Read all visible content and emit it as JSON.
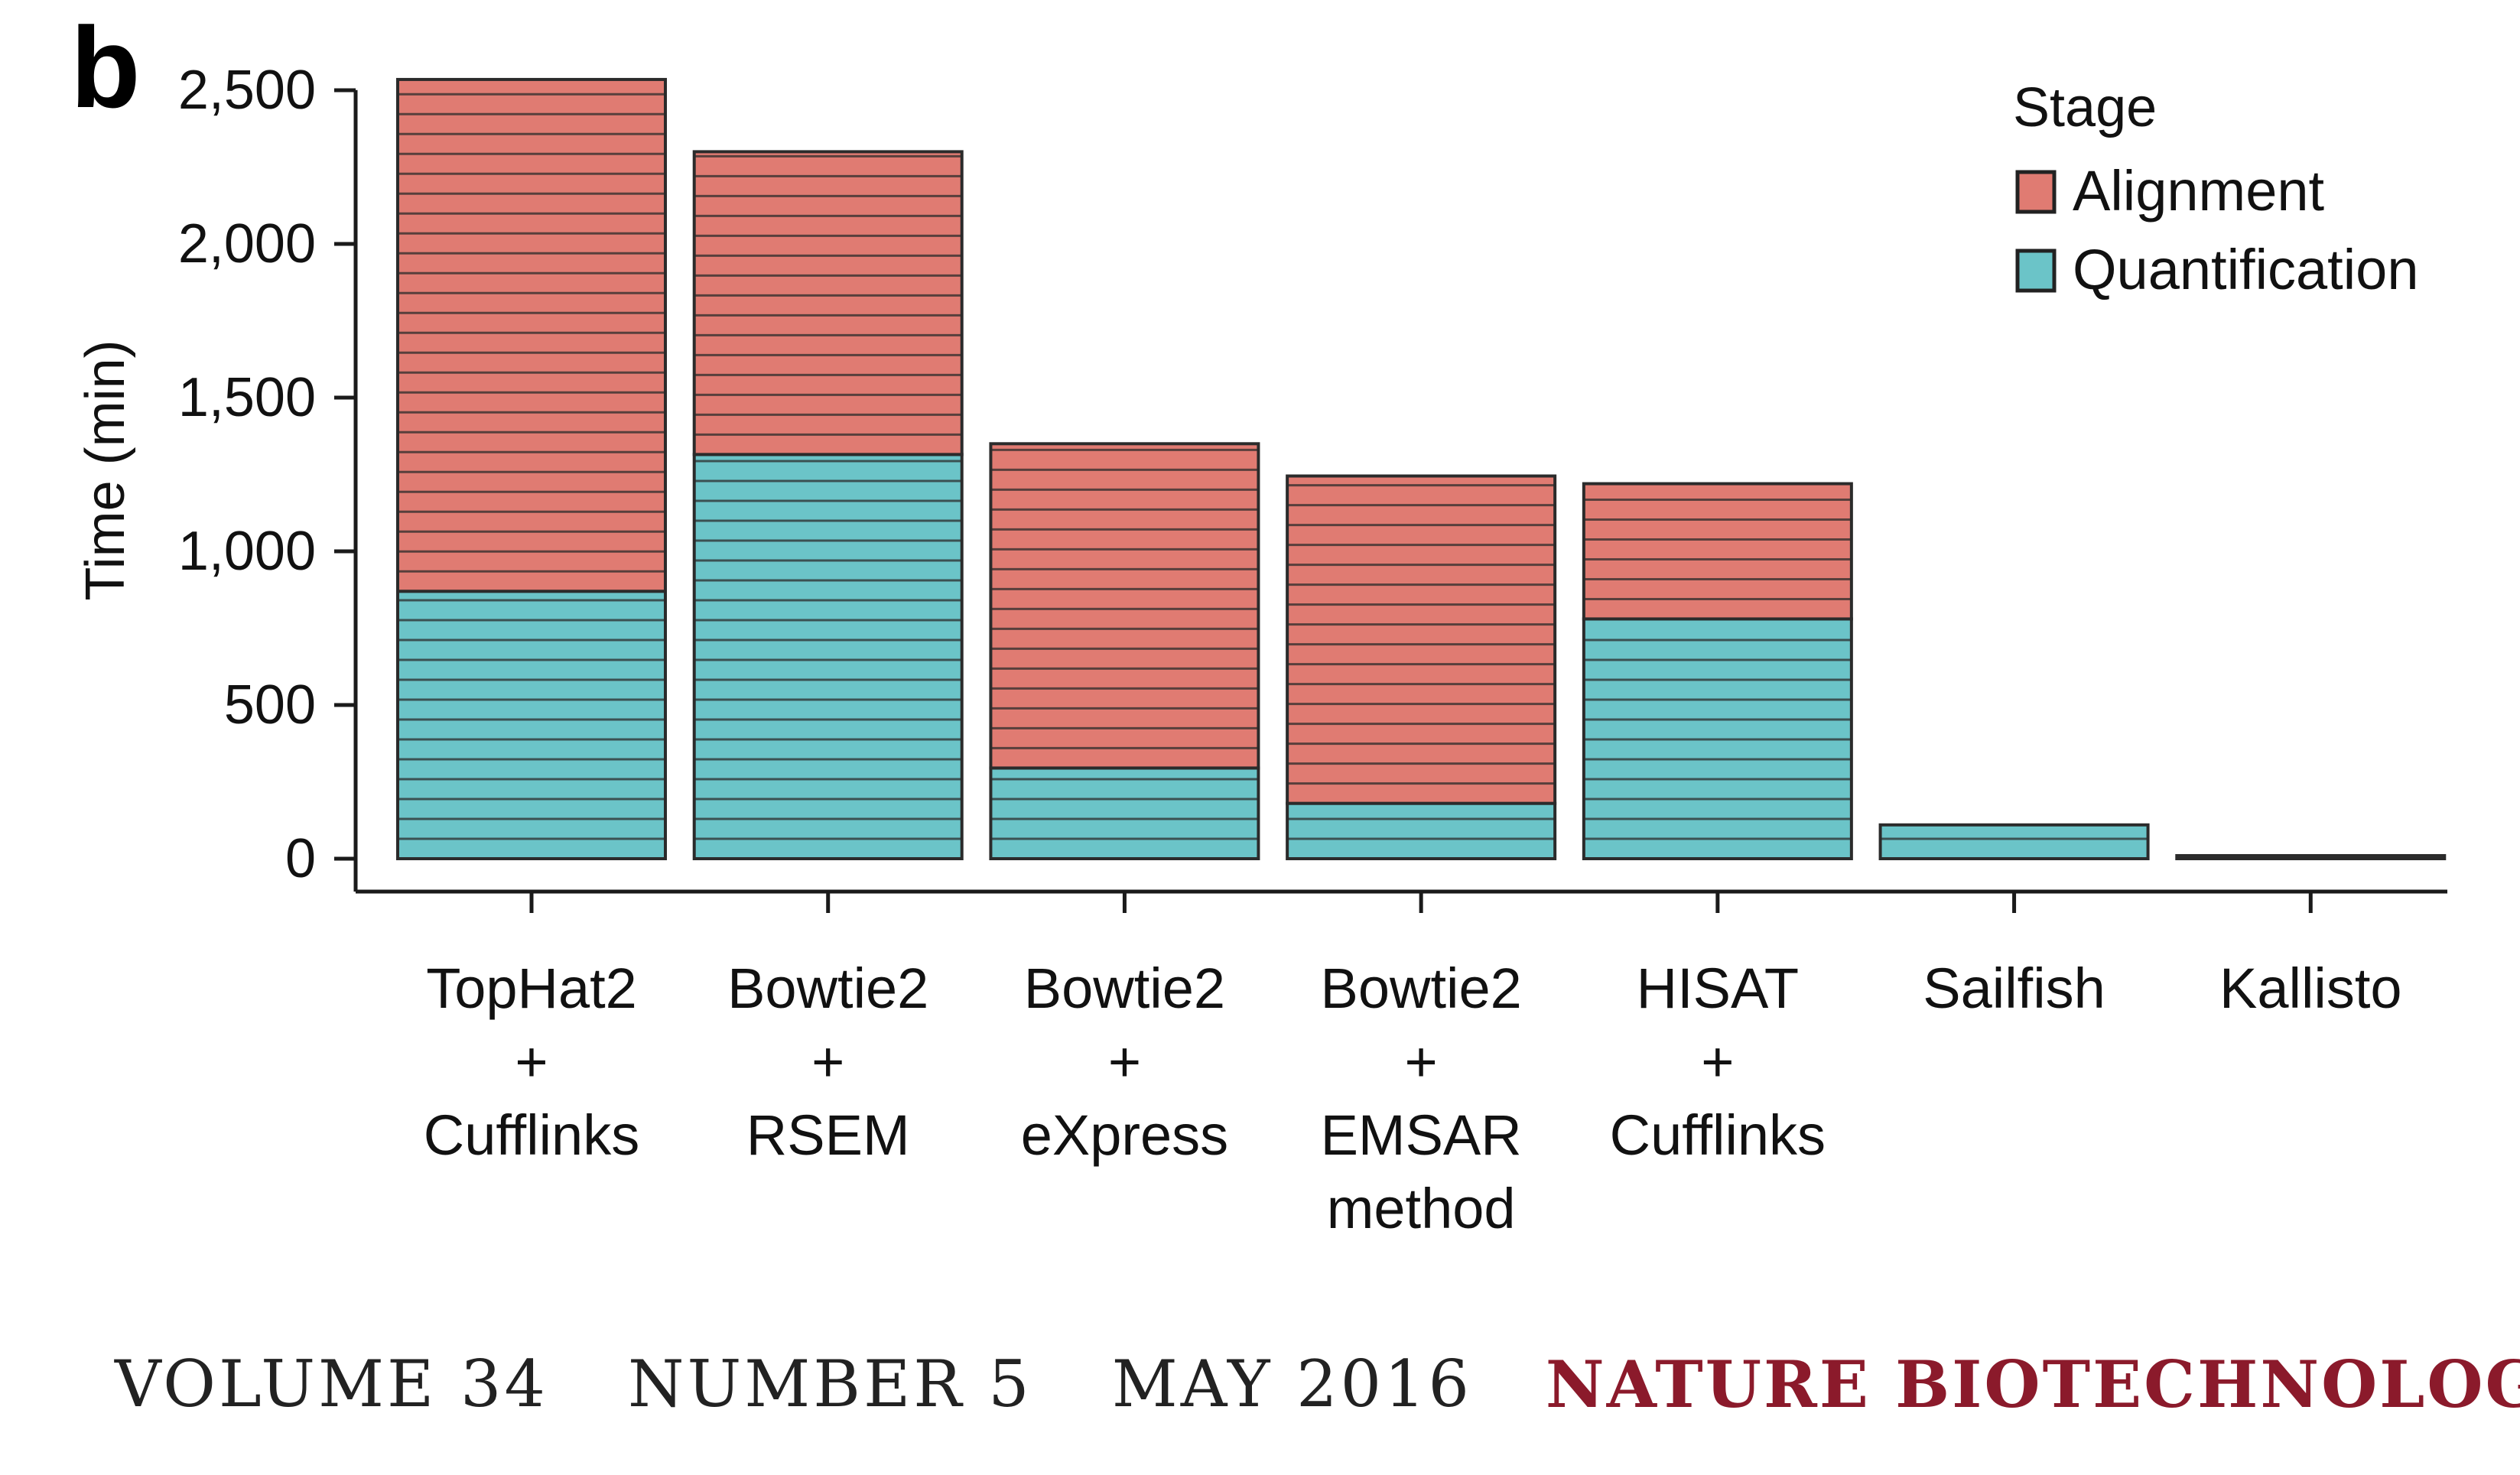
{
  "panel_label": "b",
  "colors": {
    "alignment": "#E07B72",
    "quantification": "#6BC4C8",
    "line": "#2b2b2b",
    "axis": "#1a1a1a",
    "journal": "#8B1A2B"
  },
  "footer": {
    "volume": "VOLUME 34",
    "number": "NUMBER 5",
    "date": "MAY 2016",
    "journal": "NATURE BIOTECHNOLOGY"
  },
  "chart_data": {
    "type": "bar",
    "stacked": true,
    "ylabel": "Time (min)",
    "xlabel": "",
    "ylim": [
      0,
      2600
    ],
    "yticks": [
      0,
      500,
      1000,
      1500,
      2000,
      2500
    ],
    "ytick_labels": [
      "0",
      "500",
      "1,000",
      "1,500",
      "2,000",
      "2,500"
    ],
    "legend": {
      "title": "Stage",
      "position": "top-right",
      "entries": [
        "Alignment",
        "Quantification"
      ]
    },
    "categories": [
      [
        "TopHat2",
        "+",
        "Cufflinks"
      ],
      [
        "Bowtie2",
        "+",
        "RSEM"
      ],
      [
        "Bowtie2",
        "+",
        "eXpress"
      ],
      [
        "Bowtie2",
        "+",
        "EMSAR",
        "method"
      ],
      [
        "HISAT",
        "+",
        "Cufflinks"
      ],
      [
        "Sailfish"
      ],
      [
        "Kallisto"
      ]
    ],
    "series": [
      {
        "name": "Quantification",
        "values": [
          870,
          1315,
          295,
          180,
          780,
          110,
          10
        ]
      },
      {
        "name": "Alignment",
        "values": [
          1665,
          985,
          1055,
          1065,
          440,
          0,
          0
        ]
      }
    ]
  }
}
